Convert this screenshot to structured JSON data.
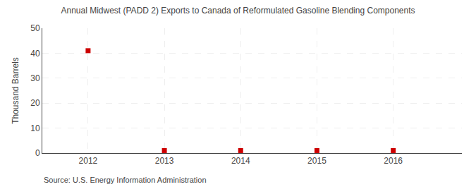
{
  "chart_data": {
    "type": "scatter",
    "title": "Annual Midwest (PADD 2) Exports to Canada of Reformulated Gasoline Blending Components",
    "ylabel": "Thousand Barrels",
    "annotations": [
      "Source: U.S. Energy Information Administration"
    ],
    "x": [
      2012,
      2013,
      2014,
      2015,
      2016
    ],
    "values": [
      41,
      1,
      1,
      1,
      1
    ],
    "xlim": [
      2011.4,
      2016.9
    ],
    "ylim": [
      0,
      50
    ],
    "xticks": [
      2012,
      2013,
      2014,
      2015,
      2016
    ],
    "yticks": [
      0,
      10,
      20,
      30,
      40,
      50
    ],
    "color": "#cc0000",
    "marker": "square",
    "grid": true
  }
}
